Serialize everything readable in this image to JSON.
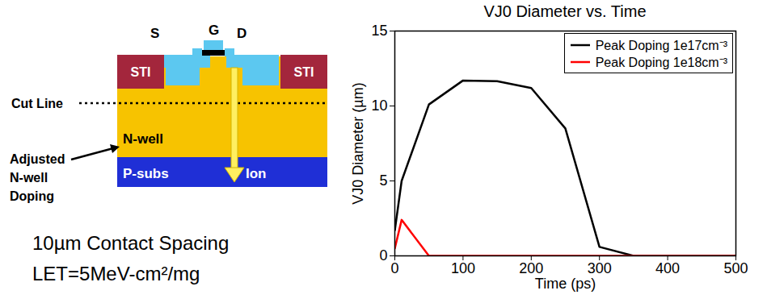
{
  "chart_data": {
    "type": "line",
    "title": "VJ0 Diameter vs. Time",
    "x_label": "Time (ps)",
    "y_label": "VJ0 Diameter (µm)",
    "x": [
      0,
      10,
      50,
      100,
      150,
      200,
      250,
      300,
      350,
      400,
      450,
      500
    ],
    "series": [
      {
        "name": "Peak Doping 1e17cm⁻³",
        "color": "#000000",
        "values": [
          1.7,
          5,
          10.1,
          11.7,
          11.65,
          11.2,
          8.5,
          0.6,
          0,
          0,
          0,
          0
        ]
      },
      {
        "name": "Peak Doping 1e18cm⁻³",
        "color": "#ff0000",
        "values": [
          0.5,
          2.4,
          0,
          0,
          0,
          0,
          0,
          0,
          0,
          0,
          0,
          0
        ]
      }
    ],
    "xlim": [
      0,
      500
    ],
    "xticks": [
      0,
      100,
      200,
      300,
      400,
      500
    ],
    "ylim": [
      0,
      15
    ],
    "yticks": [
      0,
      5,
      10,
      15
    ],
    "legend": "top-right",
    "grid": false
  },
  "diagram": {
    "labels": {
      "source": "S",
      "gate": "G",
      "drain": "D",
      "sti_left": "STI",
      "sti_right": "STI",
      "cut_line": "Cut Line",
      "n_well": "N-well",
      "substrate": "P-subs",
      "ion": "Ion",
      "adjusted": "Adjusted N-well Doping"
    },
    "captions": [
      "10µm Contact Spacing",
      "LET=5MeV-cm²/mg"
    ]
  }
}
